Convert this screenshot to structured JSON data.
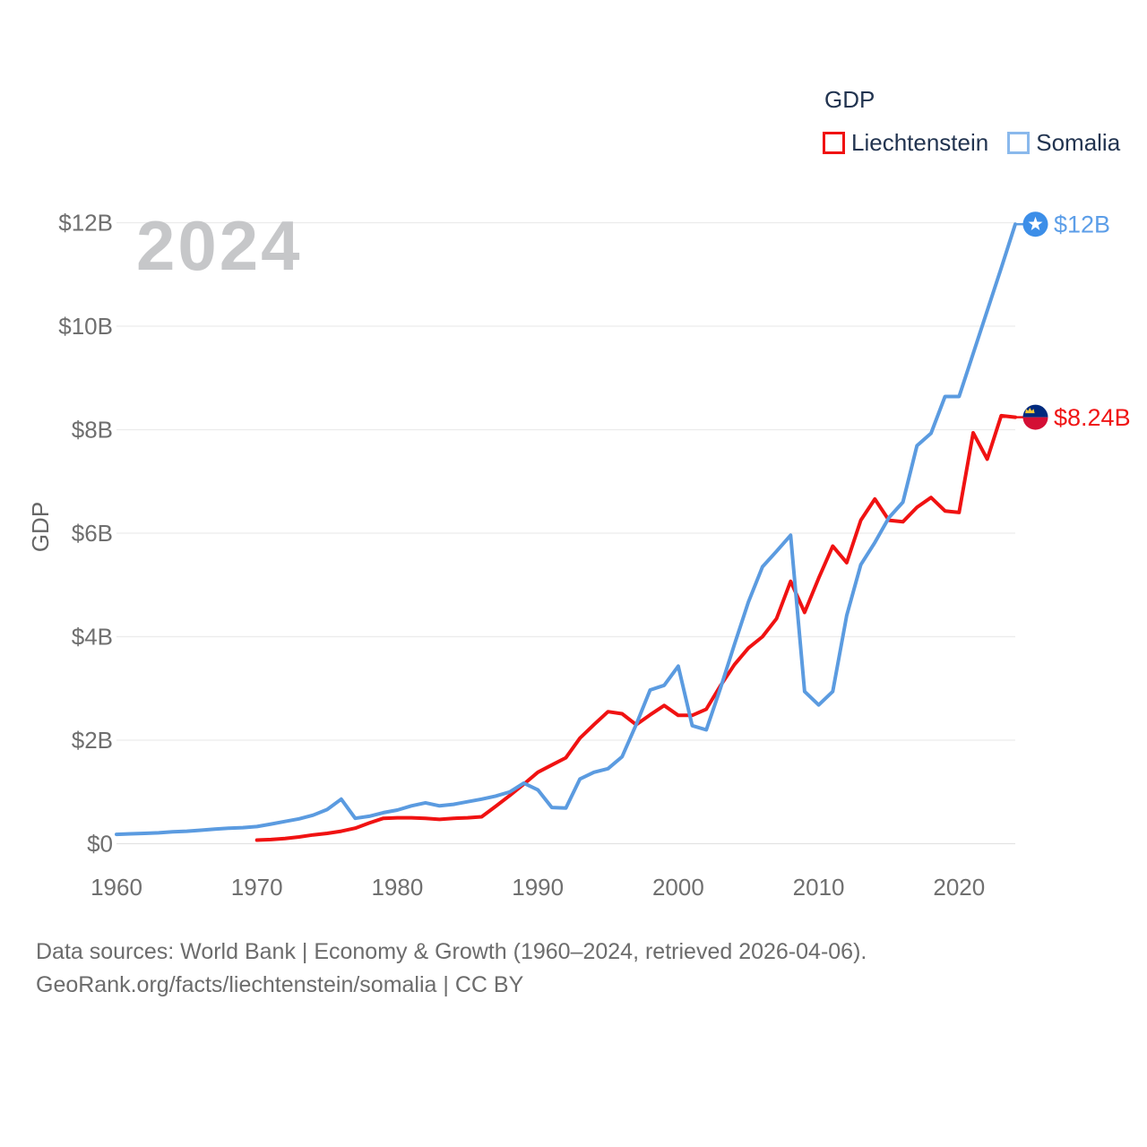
{
  "watermark": "2024",
  "legend": {
    "title": "GDP",
    "items": [
      {
        "label": "Liechtenstein",
        "box_border": "#f01212"
      },
      {
        "label": "Somalia",
        "box_border": "#8ab9ec"
      }
    ]
  },
  "footer": {
    "line1": "Data sources: World Bank | Economy & Growth (1960–2024, retrieved 2026-04-06).",
    "line2": "GeoRank.org/facts/liechtenstein/somalia | CC BY"
  },
  "colors": {
    "liechtenstein_line": "#f01212",
    "liechtenstein_label": "#f01414",
    "somalia_line": "#5b9be0",
    "somalia_label": "#5c9ee8",
    "axis_text": "#6f6f6f",
    "ylabel_text": "#666666",
    "grid": "#ececec",
    "zero_line": "#e3e3e3",
    "watermark": "#c6c7c9",
    "flag_somalia_bg": "#3c8ee8",
    "flag_somalia_star": "#ffffff",
    "flag_li_top": "#012a7e",
    "flag_li_bottom": "#d40f35",
    "flag_li_crown": "#f0c93c"
  },
  "chart_data": {
    "type": "line",
    "title": "GDP",
    "xlabel": "",
    "ylabel": "GDP",
    "xlim": [
      1960,
      2024
    ],
    "ylim": [
      0,
      12
    ],
    "grid": true,
    "legend_position": "top-right",
    "x_ticks": [
      1960,
      1970,
      1980,
      1990,
      2000,
      2010,
      2020
    ],
    "y_ticks": [
      {
        "v": 0,
        "label": "$0"
      },
      {
        "v": 2,
        "label": "$2B"
      },
      {
        "v": 4,
        "label": "$4B"
      },
      {
        "v": 6,
        "label": "$6B"
      },
      {
        "v": 8,
        "label": "$8B"
      },
      {
        "v": 10,
        "label": "$10B"
      },
      {
        "v": 12,
        "label": "$12B"
      }
    ],
    "series": [
      {
        "name": "Liechtenstein",
        "flag": "liechtenstein",
        "end_label": "$8.24B",
        "start_year": 1970,
        "end_year": 2024,
        "unit": "billion USD",
        "values": [
          0.07,
          0.08,
          0.1,
          0.13,
          0.17,
          0.2,
          0.24,
          0.3,
          0.4,
          0.49,
          0.5,
          0.5,
          0.49,
          0.47,
          0.49,
          0.5,
          0.52,
          0.72,
          0.93,
          1.15,
          1.38,
          1.52,
          1.66,
          2.04,
          2.3,
          2.55,
          2.51,
          2.3,
          2.49,
          2.67,
          2.48,
          2.48,
          2.6,
          3.05,
          3.46,
          3.78,
          4.0,
          4.35,
          5.07,
          4.47,
          5.13,
          5.75,
          5.43,
          6.25,
          6.66,
          6.25,
          6.22,
          6.5,
          6.69,
          6.43,
          6.4,
          7.94,
          7.43,
          8.27,
          8.24
        ]
      },
      {
        "name": "Somalia",
        "flag": "somalia",
        "end_label": "$12B",
        "start_year": 1960,
        "end_year": 2024,
        "unit": "billion USD",
        "values": [
          0.18,
          0.19,
          0.2,
          0.21,
          0.23,
          0.24,
          0.26,
          0.28,
          0.3,
          0.31,
          0.33,
          0.38,
          0.43,
          0.48,
          0.55,
          0.66,
          0.86,
          0.49,
          0.53,
          0.6,
          0.65,
          0.73,
          0.79,
          0.73,
          0.76,
          0.81,
          0.86,
          0.92,
          1.0,
          1.17,
          1.04,
          0.7,
          0.69,
          1.25,
          1.38,
          1.45,
          1.68,
          2.3,
          2.97,
          3.06,
          3.43,
          2.28,
          2.2,
          3.0,
          3.85,
          4.67,
          5.35,
          5.65,
          5.96,
          2.94,
          2.68,
          2.94,
          4.41,
          5.39,
          5.82,
          6.3,
          6.6,
          7.69,
          7.93,
          8.64,
          8.64,
          9.47,
          10.3,
          11.12,
          11.97
        ]
      }
    ]
  }
}
